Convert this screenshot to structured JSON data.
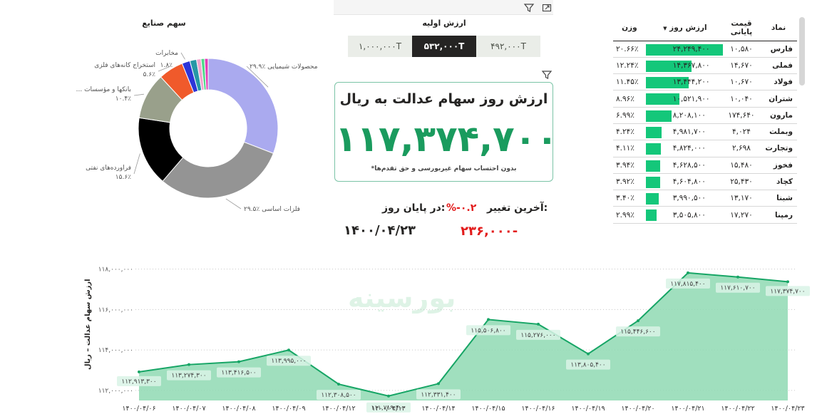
{
  "donut": {
    "title": "سهم صنایع",
    "chart_data": {
      "type": "pie",
      "slices": [
        {
          "name": "محصولات شیمیایی",
          "value": 29.9,
          "label": "۲۹.۹٪",
          "color": "#aaaaef"
        },
        {
          "name": "فلزات اساسی",
          "value": 29.5,
          "label": "۲۹.۵٪",
          "color": "#949494"
        },
        {
          "name": "فراورده‌های نفتی",
          "value": 15.6,
          "label": "۱۵.۶٪",
          "color": "#000000"
        },
        {
          "name": "... بانکها و مؤسسات",
          "value": 10.4,
          "label": "۱۰.۴٪",
          "color": "#99a08b"
        },
        {
          "name": "استخراج کانه‌های فلزی",
          "value": 5.6,
          "label": "۵.۶٪",
          "color": "#f05a2b"
        },
        {
          "name": "مخابرات",
          "value": 1.8,
          "label": "۱.۸٪",
          "color": "#2d35d8"
        },
        {
          "name": "",
          "value": 1.5,
          "label": "",
          "color": "#2697a6"
        },
        {
          "name": "",
          "value": 1.0,
          "label": "",
          "color": "#f0a4ce"
        },
        {
          "name": "",
          "value": 0.8,
          "label": "",
          "color": "#4fd98a"
        },
        {
          "name": "",
          "value": 0.8,
          "label": "",
          "color": "#e23cb6"
        }
      ]
    }
  },
  "initial": {
    "title": "ارزش اولیه",
    "options": [
      "۱,۰۰۰,۰۰۰T",
      "۵۳۲,۰۰۰T",
      "۴۹۲,۰۰۰T"
    ],
    "selected_index": 1
  },
  "kpi": {
    "title": "ارزش روز سهام عدالت به ریال",
    "value": "۱۱۷,۳۷۴,۷۰۰",
    "note": "*بدون احتساب سهام غیربورسی و حق تقدم‌ها"
  },
  "change": {
    "last_label": "آخرین تغییر:",
    "pct": "%-۰.۲",
    "end_label": "در پایان روز:",
    "abs": "۲۳۶,۰۰۰-",
    "date": "۱۴۰۰/۰۴/۲۳"
  },
  "table": {
    "headers": {
      "symbol": "نماد",
      "price": "قیمت پایانی",
      "day": "ارزش روز",
      "weight": "وزن"
    },
    "rows": [
      {
        "symbol": "فارس",
        "price": "۱۰,۵۸۰",
        "day": "۲۴,۲۴۹,۴۰۰",
        "day_num": 24249400,
        "weight": "۲۰.۶۶٪"
      },
      {
        "symbol": "فملی",
        "price": "۱۴,۶۷۰",
        "day": "۱۴,۳۶۷,۸۰۰",
        "day_num": 14367800,
        "weight": "۱۲.۲۴٪"
      },
      {
        "symbol": "فولاد",
        "price": "۱۰,۶۷۰",
        "day": "۱۳,۴۴۴,۲۰۰",
        "day_num": 13444200,
        "weight": "۱۱.۴۵٪"
      },
      {
        "symbol": "شتران",
        "price": "۱۰,۰۴۰",
        "day": "۱۰,۵۲۱,۹۰۰",
        "day_num": 10521900,
        "weight": "۸.۹۶٪"
      },
      {
        "symbol": "مارون",
        "price": "۱۷۴,۶۴۰",
        "day": "۸,۲۰۸,۱۰۰",
        "day_num": 8208100,
        "weight": "۶.۹۹٪"
      },
      {
        "symbol": "وبملت",
        "price": "۴,۰۲۴",
        "day": "۴,۹۸۱,۷۰۰",
        "day_num": 4981700,
        "weight": "۴.۲۴٪"
      },
      {
        "symbol": "وتجارت",
        "price": "۲,۶۹۸",
        "day": "۴,۸۲۴,۰۰۰",
        "day_num": 4824000,
        "weight": "۴.۱۱٪"
      },
      {
        "symbol": "فخوز",
        "price": "۱۵,۴۸۰",
        "day": "۴,۶۲۸,۵۰۰",
        "day_num": 4628500,
        "weight": "۳.۹۴٪"
      },
      {
        "symbol": "کچاد",
        "price": "۲۵,۴۳۰",
        "day": "۴,۶۰۴,۸۰۰",
        "day_num": 4604800,
        "weight": "۳.۹۲٪"
      },
      {
        "symbol": "شبنا",
        "price": "۱۳,۱۷۰",
        "day": "۳,۹۹۰,۵۰۰",
        "day_num": 3990500,
        "weight": "۳.۴۰٪"
      },
      {
        "symbol": "رمپنا",
        "price": "۱۷,۲۷۰",
        "day": "۳,۵۰۵,۸۰۰",
        "day_num": 3505800,
        "weight": "۲.۹۹٪"
      }
    ]
  },
  "area": {
    "watermark": "بورسینه",
    "chart_data": {
      "type": "area",
      "ylabel": "ارزش سهام عدالت – ریال",
      "ylim": [
        111500000,
        118200000
      ],
      "y_ticks": [
        112000000,
        114000000,
        116000000,
        118000000
      ],
      "y_tick_labels": [
        "۱۱۲,۰۰۰,۰۰۰",
        "۱۱۴,۰۰۰,۰۰۰",
        "۱۱۶,۰۰۰,۰۰۰",
        "۱۱۸,۰۰۰,۰۰۰"
      ],
      "x": [
        "۱۴۰۰/۰۴/۰۶",
        "۱۴۰۰/۰۴/۰۷",
        "۱۴۰۰/۰۴/۰۸",
        "۱۴۰۰/۰۴/۰۹",
        "۱۴۰۰/۰۴/۱۲",
        "۱۴۰۰/۰۴/۱۳",
        "۱۴۰۰/۰۴/۱۴",
        "۱۴۰۰/۰۴/۱۵",
        "۱۴۰۰/۰۴/۱۶",
        "۱۴۰۰/۰۴/۱۹",
        "۱۴۰۰/۰۴/۲۰",
        "۱۴۰۰/۰۴/۲۱",
        "۱۴۰۰/۰۴/۲۲",
        "۱۴۰۰/۰۴/۲۳"
      ],
      "values": [
        112913300,
        113274300,
        113416500,
        113995000,
        112308500,
        111719400,
        112331400,
        115506800,
        115276000,
        113805400,
        115446600,
        117815400,
        117610700,
        117374700
      ],
      "value_labels": [
        "۱۱۲,۹۱۳,۳۰۰",
        "۱۱۳,۲۷۴,۳۰۰",
        "۱۱۳,۴۱۶,۵۰۰",
        "۱۱۳,۹۹۵,۰۰۰",
        "۱۱۲,۳۰۸,۵۰۰",
        "۱۱۱,۷۱۹,۴۰۰",
        "۱۱۲,۳۳۱,۴۰۰",
        "۱۱۵,۵۰۶,۸۰۰",
        "۱۱۵,۲۷۶,۰۰۰",
        "۱۱۳,۸۰۵,۴۰۰",
        "۱۱۵,۴۴۶,۶۰۰",
        "۱۱۷,۸۱۵,۴۰۰",
        "۱۱۷,۶۱۰,۷۰۰",
        "۱۱۷,۳۷۴,۷۰۰"
      ],
      "fill_color": "#8fd9b3",
      "line_color": "#16a565"
    }
  }
}
